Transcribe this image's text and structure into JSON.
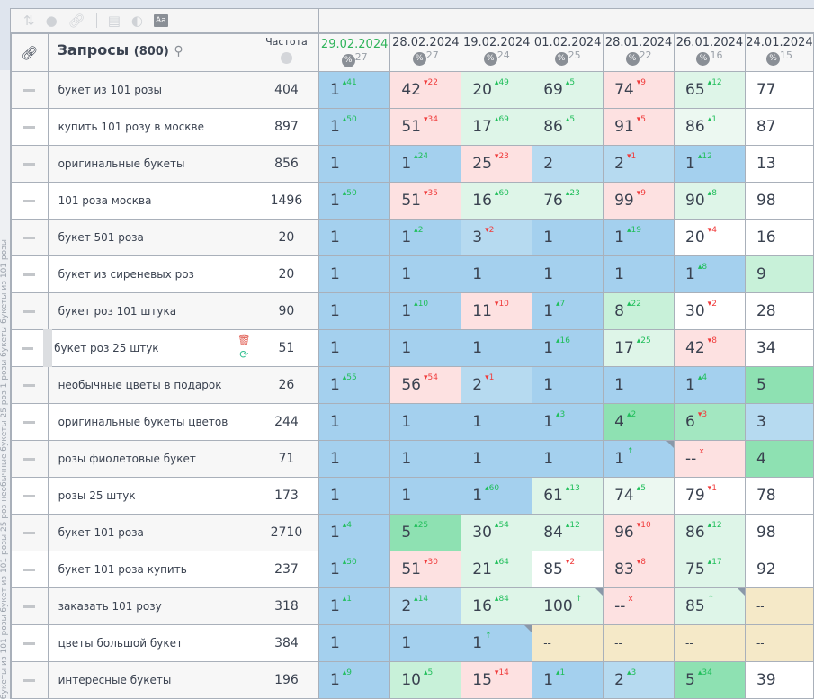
{
  "side_text": "букеты из 101 розы  букет из 101 розы  25 роз  необычные букеты  25 роз  1 розы  букеты  букеты из 101 розы",
  "toolbar": {
    "icons": [
      "sort-icon",
      "toggle-icon",
      "link-icon",
      "panel-icon",
      "contrast-icon",
      "font-icon"
    ],
    "font_label": "Aa"
  },
  "header": {
    "queries_title": "Запросы",
    "queries_count": "(800)",
    "frequency_label": "Частота"
  },
  "dates": [
    {
      "date": "29.02.2024",
      "pct": "27",
      "active": true
    },
    {
      "date": "28.02.2024",
      "pct": "27"
    },
    {
      "date": "19.02.2024",
      "pct": "24"
    },
    {
      "date": "01.02.2024",
      "pct": "25"
    },
    {
      "date": "28.01.2024",
      "pct": "22"
    },
    {
      "date": "26.01.2024",
      "pct": "16"
    },
    {
      "date": "24.01.2024",
      "pct": "15"
    }
  ],
  "rows": [
    {
      "q": "букет из 101 розы",
      "f": "404",
      "c": [
        [
          "1",
          "41",
          "+",
          "b1"
        ],
        [
          "42",
          "22",
          "-",
          "pk"
        ],
        [
          "20",
          "49",
          "+",
          "lg"
        ],
        [
          "69",
          "5",
          "+",
          "lg"
        ],
        [
          "74",
          "9",
          "-",
          "pk"
        ],
        [
          "65",
          "12",
          "+",
          "lg"
        ],
        [
          "77",
          "",
          "",
          "w"
        ]
      ]
    },
    {
      "q": "купить 101 розу в москве",
      "f": "897",
      "c": [
        [
          "1",
          "50",
          "+",
          "b1"
        ],
        [
          "51",
          "34",
          "-",
          "pk"
        ],
        [
          "17",
          "69",
          "+",
          "lg"
        ],
        [
          "86",
          "5",
          "+",
          "lg"
        ],
        [
          "91",
          "5",
          "-",
          "pk"
        ],
        [
          "86",
          "1",
          "+",
          "lg2"
        ],
        [
          "87",
          "",
          "",
          "w"
        ]
      ]
    },
    {
      "q": "оригинальные букеты",
      "f": "856",
      "c": [
        [
          "1",
          "",
          "",
          "b1"
        ],
        [
          "1",
          "24",
          "+",
          "b1"
        ],
        [
          "25",
          "23",
          "-",
          "pk"
        ],
        [
          "2",
          "",
          "",
          "b2"
        ],
        [
          "2",
          "1",
          "-",
          "b2"
        ],
        [
          "1",
          "12",
          "+",
          "b1"
        ],
        [
          "13",
          "",
          "",
          "w"
        ]
      ]
    },
    {
      "q": "101 роза москва",
      "f": "1496",
      "c": [
        [
          "1",
          "50",
          "+",
          "b1"
        ],
        [
          "51",
          "35",
          "-",
          "pk"
        ],
        [
          "16",
          "60",
          "+",
          "lg"
        ],
        [
          "76",
          "23",
          "+",
          "lg"
        ],
        [
          "99",
          "9",
          "-",
          "pk"
        ],
        [
          "90",
          "8",
          "+",
          "lg"
        ],
        [
          "98",
          "",
          "",
          "w"
        ]
      ]
    },
    {
      "q": "букет 501 роза",
      "f": "20",
      "c": [
        [
          "1",
          "",
          "",
          "b1"
        ],
        [
          "1",
          "2",
          "+",
          "b1"
        ],
        [
          "3",
          "2",
          "-",
          "b2"
        ],
        [
          "1",
          "",
          "",
          "b1"
        ],
        [
          "1",
          "19",
          "+",
          "b1"
        ],
        [
          "20",
          "4",
          "-",
          "w"
        ],
        [
          "16",
          "",
          "",
          "w"
        ]
      ]
    },
    {
      "q": "букет из сиреневых роз",
      "f": "20",
      "c": [
        [
          "1",
          "",
          "",
          "b1"
        ],
        [
          "1",
          "",
          "",
          "b1"
        ],
        [
          "1",
          "",
          "",
          "b1"
        ],
        [
          "1",
          "",
          "",
          "b1"
        ],
        [
          "1",
          "",
          "",
          "b1"
        ],
        [
          "1",
          "8",
          "+",
          "b1"
        ],
        [
          "9",
          "",
          "",
          "g3"
        ]
      ]
    },
    {
      "q": "букет роз 101 штука",
      "f": "90",
      "c": [
        [
          "1",
          "",
          "",
          "b1"
        ],
        [
          "1",
          "10",
          "+",
          "b1"
        ],
        [
          "11",
          "10",
          "-",
          "pk"
        ],
        [
          "1",
          "7",
          "+",
          "b1"
        ],
        [
          "8",
          "22",
          "+",
          "g3"
        ],
        [
          "30",
          "2",
          "-",
          "w"
        ],
        [
          "28",
          "",
          "",
          "w"
        ]
      ]
    },
    {
      "q": "букет роз 25 штук",
      "f": "51",
      "sel": true,
      "c": [
        [
          "1",
          "",
          "",
          "b1"
        ],
        [
          "1",
          "",
          "",
          "b1"
        ],
        [
          "1",
          "",
          "",
          "b1"
        ],
        [
          "1",
          "16",
          "+",
          "b1"
        ],
        [
          "17",
          "25",
          "+",
          "lg"
        ],
        [
          "42",
          "8",
          "-",
          "pk"
        ],
        [
          "34",
          "",
          "",
          "w"
        ]
      ]
    },
    {
      "q": "необычные цветы в подарок",
      "f": "26",
      "c": [
        [
          "1",
          "55",
          "+",
          "b1"
        ],
        [
          "56",
          "54",
          "-",
          "pk"
        ],
        [
          "2",
          "1",
          "-",
          "b2"
        ],
        [
          "1",
          "",
          "",
          "b1"
        ],
        [
          "1",
          "",
          "",
          "b1"
        ],
        [
          "1",
          "4",
          "+",
          "b1"
        ],
        [
          "5",
          "",
          "",
          "g1"
        ]
      ]
    },
    {
      "q": "оригинальные букеты цветов",
      "f": "244",
      "c": [
        [
          "1",
          "",
          "",
          "b1"
        ],
        [
          "1",
          "",
          "",
          "b1"
        ],
        [
          "1",
          "",
          "",
          "b1"
        ],
        [
          "1",
          "3",
          "+",
          "b1"
        ],
        [
          "4",
          "2",
          "+",
          "g1"
        ],
        [
          "6",
          "3",
          "-",
          "g2"
        ],
        [
          "3",
          "",
          "",
          "b2"
        ]
      ]
    },
    {
      "q": "розы фиолетовые букет",
      "f": "71",
      "c": [
        [
          "1",
          "",
          "",
          "b1"
        ],
        [
          "1",
          "",
          "",
          "b1"
        ],
        [
          "1",
          "",
          "",
          "b1"
        ],
        [
          "1",
          "",
          "",
          "b1"
        ],
        [
          "1",
          "↑",
          "n",
          "b1",
          1
        ],
        [
          "--",
          "x",
          "x",
          "pk"
        ],
        [
          "4",
          "",
          "",
          "g1"
        ]
      ]
    },
    {
      "q": "розы 25 штук",
      "f": "173",
      "c": [
        [
          "1",
          "",
          "",
          "b1"
        ],
        [
          "1",
          "",
          "",
          "b1"
        ],
        [
          "1",
          "60",
          "+",
          "b1"
        ],
        [
          "61",
          "13",
          "+",
          "lg"
        ],
        [
          "74",
          "5",
          "+",
          "lg2"
        ],
        [
          "79",
          "1",
          "-",
          "w"
        ],
        [
          "78",
          "",
          "",
          "w"
        ]
      ]
    },
    {
      "q": "букет 101 роза",
      "f": "2710",
      "c": [
        [
          "1",
          "4",
          "+",
          "b1"
        ],
        [
          "5",
          "25",
          "+",
          "g1"
        ],
        [
          "30",
          "54",
          "+",
          "lg"
        ],
        [
          "84",
          "12",
          "+",
          "lg"
        ],
        [
          "96",
          "10",
          "-",
          "pk"
        ],
        [
          "86",
          "12",
          "+",
          "lg"
        ],
        [
          "98",
          "",
          "",
          "w"
        ]
      ]
    },
    {
      "q": "букет 101 роза купить",
      "f": "237",
      "c": [
        [
          "1",
          "50",
          "+",
          "b1"
        ],
        [
          "51",
          "30",
          "-",
          "pk"
        ],
        [
          "21",
          "64",
          "+",
          "lg"
        ],
        [
          "85",
          "2",
          "-",
          "w"
        ],
        [
          "83",
          "8",
          "-",
          "pk"
        ],
        [
          "75",
          "17",
          "+",
          "lg"
        ],
        [
          "92",
          "",
          "",
          "w"
        ]
      ]
    },
    {
      "q": "заказать 101 розу",
      "f": "318",
      "c": [
        [
          "1",
          "1",
          "+",
          "b1"
        ],
        [
          "2",
          "14",
          "+",
          "b2"
        ],
        [
          "16",
          "84",
          "+",
          "lg"
        ],
        [
          "100",
          "↑",
          "n",
          "lg",
          1
        ],
        [
          "--",
          "x",
          "x",
          "pk"
        ],
        [
          "85",
          "↑",
          "n",
          "lg",
          1
        ],
        [
          "--",
          "",
          "",
          "tn"
        ]
      ]
    },
    {
      "q": "цветы большой букет",
      "f": "384",
      "c": [
        [
          "1",
          "",
          "",
          "b1"
        ],
        [
          "1",
          "",
          "",
          "b1"
        ],
        [
          "1",
          "↑",
          "n",
          "b1",
          1
        ],
        [
          "--",
          "",
          "",
          "tn"
        ],
        [
          "--",
          "",
          "",
          "tn"
        ],
        [
          "--",
          "",
          "",
          "tn"
        ],
        [
          "--",
          "",
          "",
          "tn"
        ]
      ]
    },
    {
      "q": "интересные букеты",
      "f": "196",
      "c": [
        [
          "1",
          "9",
          "+",
          "b1"
        ],
        [
          "10",
          "5",
          "+",
          "g3"
        ],
        [
          "15",
          "14",
          "-",
          "pk"
        ],
        [
          "1",
          "1",
          "+",
          "b1"
        ],
        [
          "2",
          "3",
          "+",
          "b2"
        ],
        [
          "5",
          "34",
          "+",
          "g1"
        ],
        [
          "39",
          "",
          "",
          "w"
        ]
      ]
    }
  ]
}
